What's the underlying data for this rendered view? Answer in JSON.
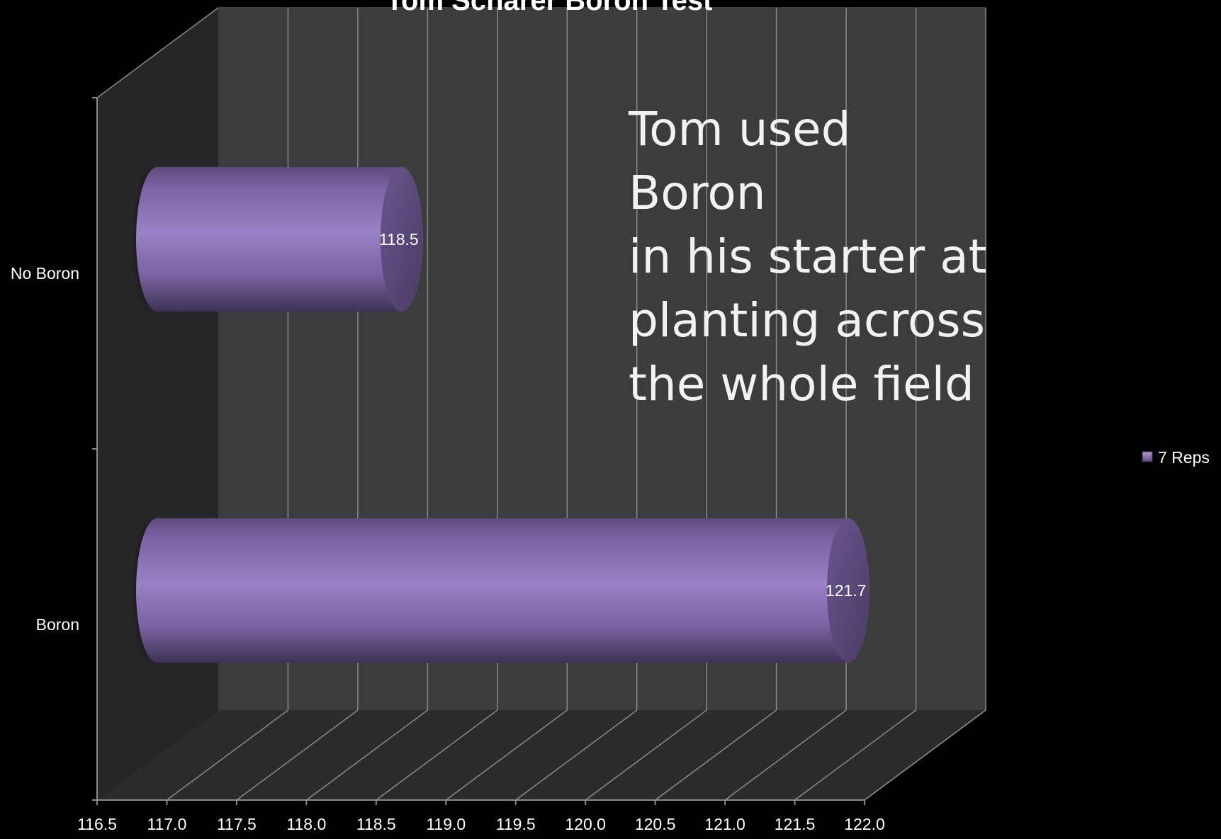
{
  "chart_data": {
    "type": "bar",
    "orientation": "horizontal",
    "style": "3d-cylinder",
    "title": "Tom Scharer Boron Test",
    "categories": [
      "No Boron",
      "Boron"
    ],
    "series": [
      {
        "name": "7 Reps",
        "values": [
          118.5,
          121.7
        ],
        "color": "#8e72b8"
      }
    ],
    "xlim": [
      116.5,
      122.0
    ],
    "xticks": [
      "116.5",
      "117.0",
      "117.5",
      "118.0",
      "118.5",
      "119.0",
      "119.5",
      "120.0",
      "120.5",
      "121.0",
      "121.5",
      "122.0"
    ],
    "data_labels": [
      "118.5",
      "121.7"
    ],
    "grid": true,
    "legend_position": "right",
    "annotation": "Tom used Boron\nin his starter at\nplanting across\nthe whole field"
  },
  "colors": {
    "background": "#000000",
    "back_wall": "#3c3c3c",
    "side_wall": "#262626",
    "floor": "#2b2b2b",
    "grid": "#8a8a8a",
    "bar": "#8e72b8",
    "bar_end": "#5a4877"
  }
}
